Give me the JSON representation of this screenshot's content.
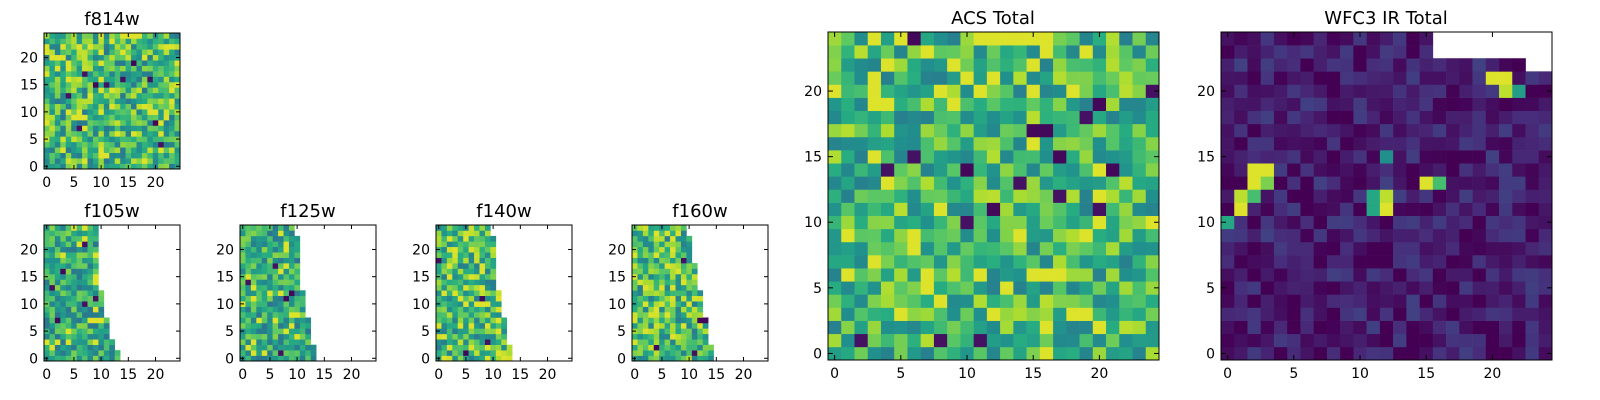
{
  "figure": {
    "colormap": "viridis",
    "cmap_colors": [
      "#440154",
      "#472c7a",
      "#3b528b",
      "#2c728e",
      "#21908d",
      "#27ad81",
      "#5cc863",
      "#aadc32",
      "#fde725"
    ]
  },
  "chart_data": [
    {
      "type": "heatmap",
      "key": "f814w",
      "title": "f814w",
      "grid": [
        25,
        25
      ],
      "xlim": [
        -0.5,
        24.5
      ],
      "ylim": [
        -0.5,
        24.5
      ],
      "xticks": [
        "0",
        "5",
        "10",
        "15",
        "20"
      ],
      "yticks": [
        "0",
        "5",
        "10",
        "15",
        "20"
      ],
      "value_range": [
        0,
        1
      ],
      "typical_value": 0.68,
      "spread": 0.18,
      "seed": 11,
      "footprint": "full",
      "special_cells": [
        {
          "x": 14,
          "y": 24,
          "v": 0.95
        },
        {
          "x": 15,
          "y": 24,
          "v": 0.95
        },
        {
          "x": 16,
          "y": 24,
          "v": 0.95
        },
        {
          "x": 17,
          "y": 24,
          "v": 0.95
        },
        {
          "x": 16,
          "y": 19,
          "v": 0.02
        },
        {
          "x": 9,
          "y": 15,
          "v": 0.02
        },
        {
          "x": 20,
          "y": 8,
          "v": 0.02
        },
        {
          "x": 10,
          "y": 2,
          "v": 0.95
        }
      ]
    },
    {
      "type": "heatmap",
      "key": "f105w",
      "title": "f105w",
      "grid": [
        25,
        25
      ],
      "xlim": [
        -0.5,
        24.5
      ],
      "ylim": [
        -0.5,
        24.5
      ],
      "xticks": [
        "0",
        "5",
        "10",
        "15",
        "20"
      ],
      "yticks": [
        "0",
        "5",
        "10",
        "15",
        "20"
      ],
      "value_range": [
        0,
        1
      ],
      "typical_value": 0.62,
      "spread": 0.15,
      "seed": 23,
      "footprint": "left-wedge",
      "footprint_right_edge_by_row": [
        [
          0,
          13
        ],
        [
          5,
          11
        ],
        [
          10,
          10
        ],
        [
          15,
          9
        ],
        [
          20,
          9
        ],
        [
          24,
          9
        ]
      ],
      "special_cells": [
        {
          "x": 9,
          "y": 15,
          "v": 0.95
        },
        {
          "x": 10,
          "y": 15,
          "v": 0.95
        },
        {
          "x": 3,
          "y": 16,
          "v": 0.02
        },
        {
          "x": 2,
          "y": 7,
          "v": 0.02
        }
      ]
    },
    {
      "type": "heatmap",
      "key": "f125w",
      "title": "f125w",
      "grid": [
        25,
        25
      ],
      "xlim": [
        -0.5,
        24.5
      ],
      "ylim": [
        -0.5,
        24.5
      ],
      "xticks": [
        "0",
        "5",
        "10",
        "15",
        "20"
      ],
      "yticks": [
        "0",
        "5",
        "10",
        "15",
        "20"
      ],
      "value_range": [
        0,
        1
      ],
      "typical_value": 0.62,
      "spread": 0.15,
      "seed": 37,
      "footprint": "left-wedge",
      "footprint_right_edge_by_row": [
        [
          0,
          13
        ],
        [
          5,
          12
        ],
        [
          10,
          11
        ],
        [
          15,
          10
        ],
        [
          20,
          10
        ],
        [
          24,
          9
        ]
      ],
      "special_cells": [
        {
          "x": 8,
          "y": 21,
          "v": 0.95
        },
        {
          "x": 8,
          "y": 20,
          "v": 0.95
        },
        {
          "x": 8,
          "y": 11,
          "v": 0.02
        },
        {
          "x": 9,
          "y": 12,
          "v": 0.02
        }
      ]
    },
    {
      "type": "heatmap",
      "key": "f140w",
      "title": "f140w",
      "grid": [
        25,
        25
      ],
      "xlim": [
        -0.5,
        24.5
      ],
      "ylim": [
        -0.5,
        24.5
      ],
      "xticks": [
        "0",
        "5",
        "10",
        "15",
        "20"
      ],
      "yticks": [
        "0",
        "5",
        "10",
        "15",
        "20"
      ],
      "value_range": [
        0,
        1
      ],
      "typical_value": 0.7,
      "spread": 0.18,
      "seed": 41,
      "footprint": "left-wedge",
      "footprint_right_edge_by_row": [
        [
          0,
          13
        ],
        [
          5,
          12
        ],
        [
          10,
          11
        ],
        [
          15,
          10
        ],
        [
          20,
          10
        ],
        [
          24,
          9
        ]
      ],
      "special_cells": [
        {
          "x": 8,
          "y": 11,
          "v": 0.02
        },
        {
          "x": 5,
          "y": 1,
          "v": 0.02
        },
        {
          "x": 11,
          "y": 1,
          "v": 0.95
        },
        {
          "x": 12,
          "y": 0,
          "v": 0.95
        }
      ]
    },
    {
      "type": "heatmap",
      "key": "f160w",
      "title": "f160w",
      "grid": [
        25,
        25
      ],
      "xlim": [
        -0.5,
        24.5
      ],
      "ylim": [
        -0.5,
        24.5
      ],
      "xticks": [
        "0",
        "5",
        "10",
        "15",
        "20"
      ],
      "yticks": [
        "0",
        "5",
        "10",
        "15",
        "20"
      ],
      "value_range": [
        0,
        1
      ],
      "typical_value": 0.7,
      "spread": 0.18,
      "seed": 53,
      "footprint": "left-wedge",
      "footprint_right_edge_by_row": [
        [
          0,
          14
        ],
        [
          5,
          13
        ],
        [
          10,
          12
        ],
        [
          15,
          11
        ],
        [
          20,
          10
        ],
        [
          24,
          9
        ]
      ],
      "special_cells": [
        {
          "x": 12,
          "y": 7,
          "v": 0.02
        },
        {
          "x": 13,
          "y": 7,
          "v": 0.02
        },
        {
          "x": 4,
          "y": 2,
          "v": 0.02
        },
        {
          "x": 9,
          "y": 14,
          "v": 0.95
        }
      ]
    },
    {
      "type": "heatmap",
      "key": "acs_total",
      "title": "ACS Total",
      "grid": [
        25,
        25
      ],
      "xlim": [
        -0.5,
        24.5
      ],
      "ylim": [
        -0.5,
        24.5
      ],
      "xticks": [
        "0",
        "5",
        "10",
        "15",
        "20"
      ],
      "yticks": [
        "0",
        "5",
        "10",
        "15",
        "20"
      ],
      "value_range": [
        0,
        1
      ],
      "typical_value": 0.68,
      "spread": 0.16,
      "seed": 67,
      "footprint": "full",
      "special_cells": [
        {
          "x": 6,
          "y": 24,
          "v": 0.02
        },
        {
          "x": 12,
          "y": 24,
          "v": 0.95
        },
        {
          "x": 13,
          "y": 24,
          "v": 0.95
        },
        {
          "x": 14,
          "y": 24,
          "v": 0.95
        },
        {
          "x": 15,
          "y": 24,
          "v": 0.95
        },
        {
          "x": 16,
          "y": 24,
          "v": 0.95
        },
        {
          "x": 20,
          "y": 19,
          "v": 0.02
        },
        {
          "x": 15,
          "y": 17,
          "v": 0.02
        },
        {
          "x": 16,
          "y": 17,
          "v": 0.02
        },
        {
          "x": 10,
          "y": 14,
          "v": 0.02
        },
        {
          "x": 17,
          "y": 15,
          "v": 0.02
        },
        {
          "x": 21,
          "y": 14,
          "v": 0.02
        },
        {
          "x": 12,
          "y": 11,
          "v": 0.02
        },
        {
          "x": 3,
          "y": 20,
          "v": 0.95
        },
        {
          "x": 3,
          "y": 15,
          "v": 0.95
        }
      ]
    },
    {
      "type": "heatmap",
      "key": "wfc3_ir_total",
      "title": "WFC3 IR Total",
      "grid": [
        25,
        25
      ],
      "xlim": [
        -0.5,
        24.5
      ],
      "ylim": [
        -0.5,
        24.5
      ],
      "xticks": [
        "0",
        "5",
        "10",
        "15",
        "20"
      ],
      "yticks": [
        "0",
        "5",
        "10",
        "15",
        "20"
      ],
      "value_range": [
        0,
        1
      ],
      "typical_value": 0.08,
      "spread": 0.07,
      "seed": 79,
      "footprint": "top-right-notch",
      "missing_cells_rows": [
        [
          24,
          16,
          24
        ],
        [
          23,
          16,
          24
        ],
        [
          22,
          23,
          24
        ]
      ],
      "special_cells": [
        {
          "x": 20,
          "y": 21,
          "v": 0.95
        },
        {
          "x": 21,
          "y": 21,
          "v": 0.95
        },
        {
          "x": 21,
          "y": 20,
          "v": 0.9
        },
        {
          "x": 22,
          "y": 20,
          "v": 0.55
        },
        {
          "x": 2,
          "y": 14,
          "v": 0.95
        },
        {
          "x": 3,
          "y": 14,
          "v": 0.95
        },
        {
          "x": 2,
          "y": 13,
          "v": 0.95
        },
        {
          "x": 3,
          "y": 13,
          "v": 0.8
        },
        {
          "x": 1,
          "y": 12,
          "v": 0.9
        },
        {
          "x": 2,
          "y": 12,
          "v": 0.7
        },
        {
          "x": 1,
          "y": 11,
          "v": 0.95
        },
        {
          "x": 0,
          "y": 10,
          "v": 0.6
        },
        {
          "x": 11,
          "y": 12,
          "v": 0.6
        },
        {
          "x": 12,
          "y": 12,
          "v": 0.9
        },
        {
          "x": 12,
          "y": 11,
          "v": 0.95
        },
        {
          "x": 11,
          "y": 11,
          "v": 0.6
        },
        {
          "x": 12,
          "y": 15,
          "v": 0.5
        },
        {
          "x": 15,
          "y": 13,
          "v": 0.95
        },
        {
          "x": 16,
          "y": 13,
          "v": 0.7
        }
      ]
    }
  ]
}
